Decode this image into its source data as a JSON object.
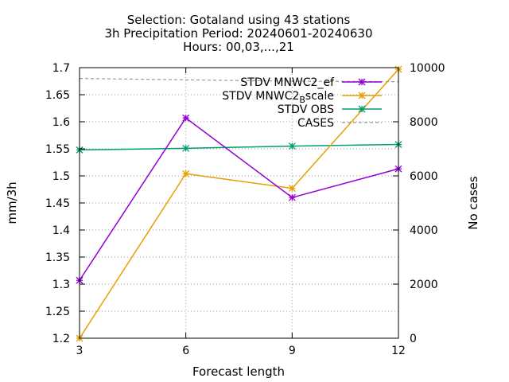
{
  "chart_data": {
    "type": "line",
    "title_lines": [
      "Selection: Gotaland using    43 stations",
      "3h Precipitation   Period: 20240601-20240630",
      "Hours: 00,03,...,21"
    ],
    "xlabel": "Forecast length",
    "ylabel": "mm/3h",
    "y2label": "No cases",
    "x": [
      3,
      6,
      9,
      12
    ],
    "xticks": [
      "3",
      "6",
      "9",
      "12"
    ],
    "xlim": [
      3,
      12
    ],
    "ylim": [
      1.2,
      1.7
    ],
    "yticks": [
      "1.2",
      "1.25",
      "1.3",
      "1.35",
      "1.4",
      "1.45",
      "1.5",
      "1.55",
      "1.6",
      "1.65",
      "1.7"
    ],
    "y2lim": [
      0,
      10000
    ],
    "y2ticks": [
      "0",
      "2000",
      "4000",
      "6000",
      "8000",
      "10000"
    ],
    "grid": true,
    "legend_position": "top-right",
    "series": [
      {
        "name": "STDV MNWC2_ef",
        "values": [
          1.307,
          1.607,
          1.46,
          1.513
        ],
        "color": "#9400d3",
        "axis": "y",
        "marker": "star"
      },
      {
        "name_main": "STDV MNWC2",
        "name_sub": "B",
        "name_rest": "scale",
        "values": [
          1.2,
          1.504,
          1.477,
          1.697
        ],
        "color": "#e69f00",
        "axis": "y",
        "marker": "star"
      },
      {
        "name": "STDV OBS",
        "values": [
          1.548,
          1.551,
          1.555,
          1.558
        ],
        "color": "#009e73",
        "axis": "y",
        "marker": "star"
      },
      {
        "name": "CASES",
        "values": [
          9600,
          9550,
          9500,
          9480
        ],
        "color": "#999999",
        "axis": "y2",
        "dashed": true
      }
    ]
  }
}
